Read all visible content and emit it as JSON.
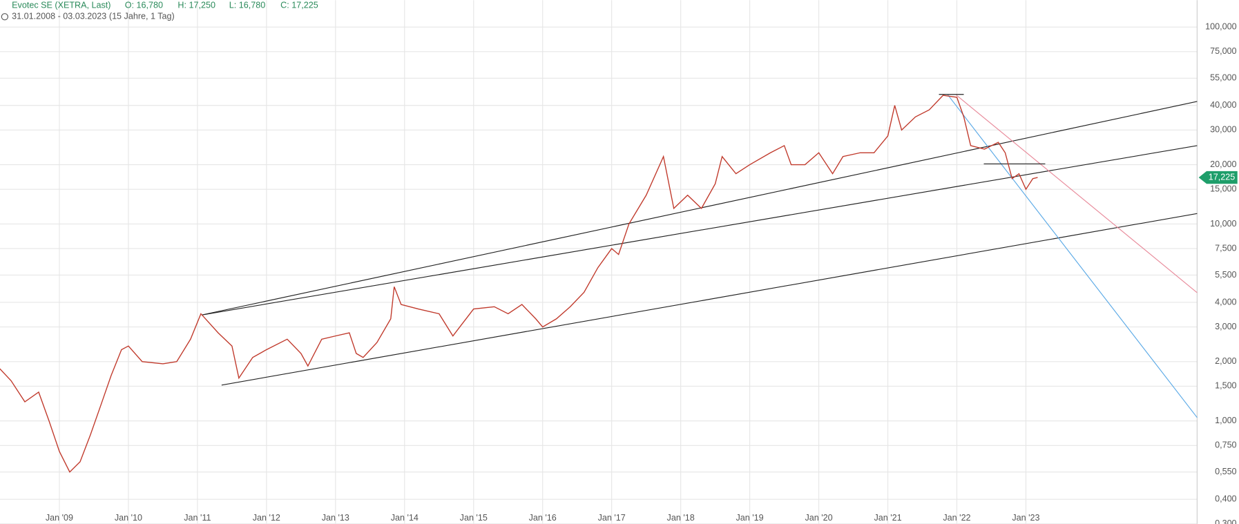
{
  "header": {
    "title": "Evotec SE (XETRA, Last)",
    "open": "O: 16,780",
    "high": "H: 17,250",
    "low": "L: 16,780",
    "close": "C: 17,225",
    "range": "31.01.2008 - 03.03.2023",
    "span": "(15 Jahre, 1 Tag)"
  },
  "chart_data": {
    "type": "line",
    "log_scale": true,
    "grid": true,
    "xlim": [
      2008.14,
      2025.48
    ],
    "ylim": [
      0.3,
      137
    ],
    "xticks": [
      {
        "value": 2009,
        "label": "Jan '09"
      },
      {
        "value": 2010,
        "label": "Jan '10"
      },
      {
        "value": 2011,
        "label": "Jan '11"
      },
      {
        "value": 2012,
        "label": "Jan '12"
      },
      {
        "value": 2013,
        "label": "Jan '13"
      },
      {
        "value": 2014,
        "label": "Jan '14"
      },
      {
        "value": 2015,
        "label": "Jan '15"
      },
      {
        "value": 2016,
        "label": "Jan '16"
      },
      {
        "value": 2017,
        "label": "Jan '17"
      },
      {
        "value": 2018,
        "label": "Jan '18"
      },
      {
        "value": 2019,
        "label": "Jan '19"
      },
      {
        "value": 2020,
        "label": "Jan '20"
      },
      {
        "value": 2021,
        "label": "Jan '21"
      },
      {
        "value": 2022,
        "label": "Jan '22"
      },
      {
        "value": 2023,
        "label": "Jan '23"
      }
    ],
    "yticks": [
      {
        "value": 100,
        "label": "100,000"
      },
      {
        "value": 75,
        "label": "75,000"
      },
      {
        "value": 55,
        "label": "55,000"
      },
      {
        "value": 40,
        "label": "40,000"
      },
      {
        "value": 30,
        "label": "30,000"
      },
      {
        "value": 20,
        "label": "20,000"
      },
      {
        "value": 15,
        "label": "15,000"
      },
      {
        "value": 10,
        "label": "10,000"
      },
      {
        "value": 7.5,
        "label": "7,500"
      },
      {
        "value": 5.5,
        "label": "5,500"
      },
      {
        "value": 4,
        "label": "4,000"
      },
      {
        "value": 3,
        "label": "3,000"
      },
      {
        "value": 2,
        "label": "2,000"
      },
      {
        "value": 1.5,
        "label": "1,500"
      },
      {
        "value": 1,
        "label": "1,000"
      },
      {
        "value": 0.75,
        "label": "0,750"
      },
      {
        "value": 0.55,
        "label": "0,550"
      },
      {
        "value": 0.4,
        "label": "0,400"
      },
      {
        "value": 0.3,
        "label": "0,300"
      }
    ],
    "x": [
      2008.1,
      2008.3,
      2008.5,
      2008.7,
      2008.85,
      2009.0,
      2009.15,
      2009.3,
      2009.45,
      2009.6,
      2009.75,
      2009.9,
      2010.0,
      2010.2,
      2010.5,
      2010.7,
      2010.9,
      2011.05,
      2011.3,
      2011.5,
      2011.6,
      2011.8,
      2012.0,
      2012.3,
      2012.5,
      2012.6,
      2012.8,
      2013.0,
      2013.2,
      2013.3,
      2013.4,
      2013.6,
      2013.8,
      2013.85,
      2013.95,
      2014.2,
      2014.5,
      2014.7,
      2014.8,
      2015.0,
      2015.3,
      2015.5,
      2015.7,
      2015.9,
      2016.0,
      2016.2,
      2016.4,
      2016.6,
      2016.8,
      2017.0,
      2017.1,
      2017.25,
      2017.5,
      2017.75,
      2017.9,
      2018.1,
      2018.3,
      2018.5,
      2018.6,
      2018.8,
      2019.0,
      2019.3,
      2019.5,
      2019.6,
      2019.8,
      2020.0,
      2020.2,
      2020.35,
      2020.6,
      2020.8,
      2021.0,
      2021.1,
      2021.2,
      2021.4,
      2021.6,
      2021.8,
      2022.0,
      2022.1,
      2022.2,
      2022.4,
      2022.6,
      2022.7,
      2022.8,
      2022.9,
      2023.0,
      2023.1,
      2023.17
    ],
    "series": [
      {
        "name": "Evotec SE",
        "color": "#c0392b",
        "values": [
          1.9,
          1.6,
          1.25,
          1.4,
          1.0,
          0.7,
          0.55,
          0.62,
          0.85,
          1.2,
          1.7,
          2.3,
          2.4,
          2.0,
          1.95,
          2.0,
          2.6,
          3.5,
          2.8,
          2.4,
          1.65,
          2.1,
          2.3,
          2.6,
          2.2,
          1.9,
          2.6,
          2.7,
          2.8,
          2.2,
          2.1,
          2.5,
          3.3,
          4.8,
          3.9,
          3.7,
          3.5,
          2.7,
          3.0,
          3.7,
          3.8,
          3.5,
          3.9,
          3.3,
          3.0,
          3.3,
          3.8,
          4.5,
          6.0,
          7.5,
          7.0,
          10,
          14,
          22,
          12,
          14,
          12,
          16,
          22,
          18,
          20,
          23,
          25,
          20,
          20,
          23,
          18,
          22,
          23,
          23,
          28,
          40,
          30,
          35,
          38,
          45,
          44,
          35,
          25,
          24,
          26,
          23,
          17,
          18,
          15,
          17,
          17.225
        ]
      }
    ],
    "trendlines": [
      {
        "color": "#222222",
        "x": [
          2011.06,
          2025.48
        ],
        "y": [
          3.45,
          41.9
        ]
      },
      {
        "color": "#222222",
        "x": [
          2011.06,
          2025.48
        ],
        "y": [
          3.45,
          25
        ]
      },
      {
        "color": "#222222",
        "x": [
          2011.35,
          2025.48
        ],
        "y": [
          1.52,
          11.3
        ]
      },
      {
        "color": "#e88a9a",
        "x": [
          2021.99,
          2025.48
        ],
        "y": [
          45.2,
          4.48
        ]
      },
      {
        "color": "#5aa9e6",
        "x": [
          2021.87,
          2025.48
        ],
        "y": [
          45.2,
          1.04
        ]
      },
      {
        "color": "#222222",
        "x": [
          2021.74,
          2022.1
        ],
        "y": [
          45.5,
          45.5
        ]
      },
      {
        "color": "#222222",
        "x": [
          2022.39,
          2023.28
        ],
        "y": [
          20.2,
          20.2
        ]
      }
    ],
    "last_price": {
      "value": 17.225,
      "label": "17,225",
      "color": "#1e9e6a"
    }
  }
}
